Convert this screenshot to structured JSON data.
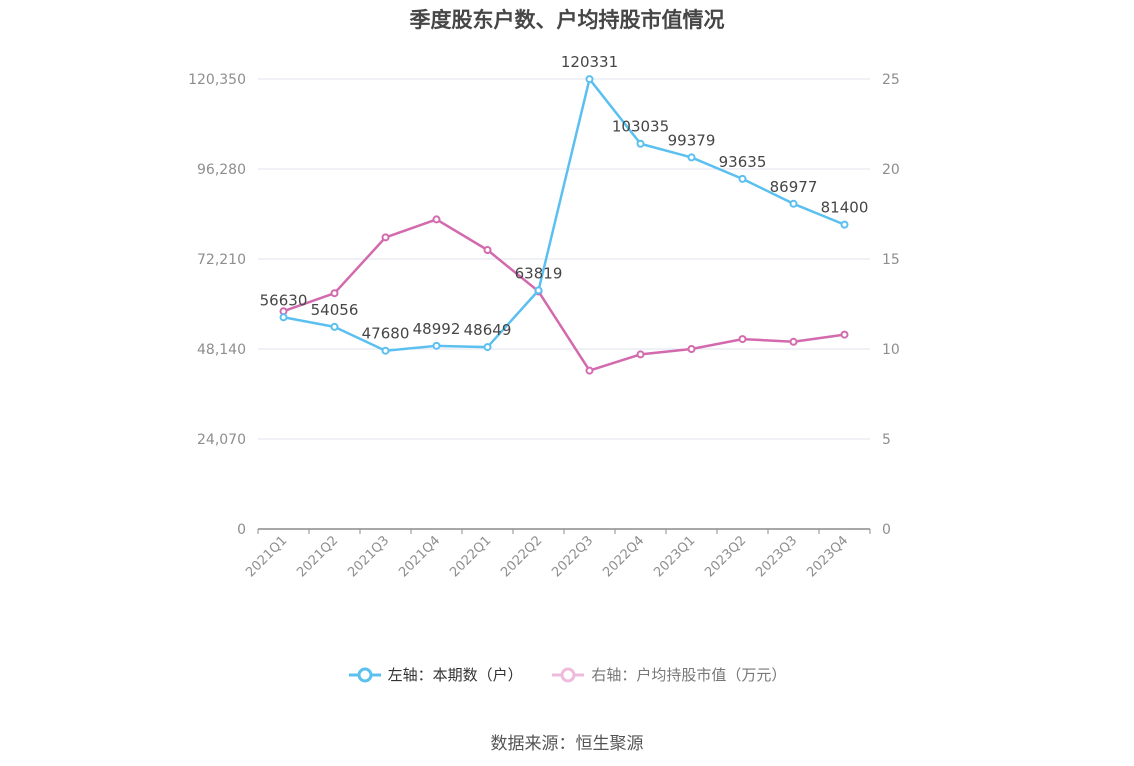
{
  "chart_data": {
    "type": "line",
    "title": "季度股东户数、户均持股市值情况",
    "categories": [
      "2021Q1",
      "2021Q2",
      "2021Q3",
      "2021Q4",
      "2022Q1",
      "2022Q2",
      "2022Q3",
      "2022Q4",
      "2023Q1",
      "2023Q2",
      "2023Q3",
      "2023Q4"
    ],
    "left_axis": {
      "ticks": [
        "0",
        "24,070",
        "48,140",
        "72,210",
        "96,280",
        "120,350"
      ],
      "ylim": [
        0,
        120350
      ]
    },
    "right_axis": {
      "ticks": [
        "0",
        "5",
        "10",
        "15",
        "20",
        "25"
      ],
      "ylim": [
        0,
        25
      ]
    },
    "grid": true,
    "legend_position": "bottom",
    "series": [
      {
        "name": "左轴：本期数（户）",
        "axis": "left",
        "color": "#5bc0f0",
        "values": [
          56630,
          54056,
          47680,
          48992,
          48649,
          63819,
          120331,
          103035,
          99379,
          93635,
          86977,
          81400
        ],
        "labels": [
          "56630",
          "54056",
          "47680",
          "48992",
          "48649",
          "63819",
          "120331",
          "103035",
          "99379",
          "93635",
          "86977",
          "81400"
        ]
      },
      {
        "name": "右轴：户均持股市值（万元）",
        "axis": "right",
        "color": "#d26aad",
        "values": [
          12.1,
          13.1,
          16.2,
          17.2,
          15.5,
          13.2,
          8.8,
          9.7,
          10.0,
          10.55,
          10.4,
          10.8
        ]
      }
    ]
  },
  "source": "数据来源：恒生聚源"
}
